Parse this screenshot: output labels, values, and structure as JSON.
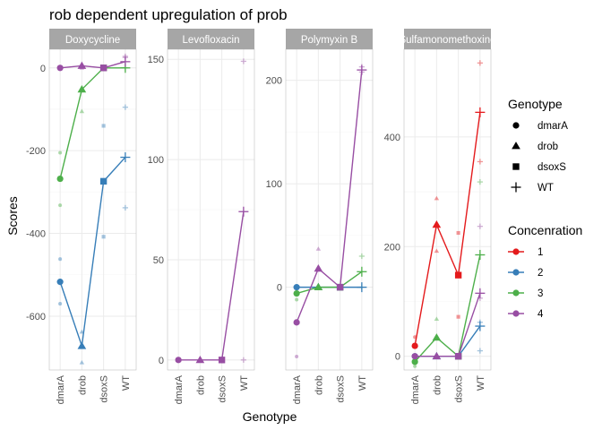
{
  "chart_data": {
    "type": "line",
    "title": "rob dependent upregulation of prob",
    "xlabel": "Genotype",
    "ylabel": "Scores",
    "categories": [
      "dmarA",
      "drob",
      "dsoxS",
      "WT"
    ],
    "facets": [
      {
        "name": "Doxycycline",
        "ylim": [
          -730,
          45
        ],
        "yticks": [
          0,
          -200,
          -400,
          -600
        ],
        "series": [
          {
            "concentration": "2",
            "values": [
              -517,
              -672,
              -274,
              -216
            ]
          },
          {
            "concentration": "3",
            "values": [
              -268,
              -52,
              0,
              0
            ]
          },
          {
            "concentration": "4",
            "values": [
              0,
              5,
              0,
              15
            ]
          }
        ],
        "replicates": [
          {
            "concentration": "2",
            "values": [
              [
                -462,
                -570
              ],
              [
                -638,
                -712
              ],
              [
                -140,
                -408
              ],
              [
                -95,
                -338
              ]
            ]
          },
          {
            "concentration": "3",
            "values": [
              [
                -205,
                -332
              ],
              [
                -105
              ],
              [
                0
              ],
              [
                0
              ]
            ]
          },
          {
            "concentration": "4",
            "values": [
              [
                0
              ],
              [
                0,
                8
              ],
              [
                0
              ],
              [
                25,
                28
              ]
            ]
          }
        ]
      },
      {
        "name": "Levofloxacin",
        "ylim": [
          -5,
          155
        ],
        "yticks": [
          0,
          50,
          100,
          150
        ],
        "series": [
          {
            "concentration": "4",
            "values": [
              0,
              0,
              0,
              74
            ]
          }
        ],
        "replicates": [
          {
            "concentration": "4",
            "values": [
              [
                0
              ],
              [
                0
              ],
              [
                0
              ],
              [
                149,
                0
              ]
            ]
          }
        ]
      },
      {
        "name": "Polymyxin B",
        "ylim": [
          -80,
          230
        ],
        "yticks": [
          0,
          100,
          200
        ],
        "series": [
          {
            "concentration": "2",
            "values": [
              0,
              0,
              0,
              0
            ]
          },
          {
            "concentration": "3",
            "values": [
              -6,
              0,
              0,
              15
            ]
          },
          {
            "concentration": "4",
            "values": [
              -34,
              18,
              0,
              210
            ]
          }
        ],
        "replicates": [
          {
            "concentration": "3",
            "values": [
              [
                -12
              ],
              [
                0
              ],
              [
                0
              ],
              [
                30,
                0
              ]
            ]
          },
          {
            "concentration": "4",
            "values": [
              [
                -67
              ],
              [
                37
              ],
              [
                0
              ],
              [
                213,
                208
              ]
            ]
          }
        ]
      },
      {
        "name": "Sulfamonomethoxine",
        "ylim": [
          -25,
          560
        ],
        "yticks": [
          0,
          200,
          400
        ],
        "series": [
          {
            "concentration": "1",
            "values": [
              19,
              240,
              148,
              445
            ]
          },
          {
            "concentration": "2",
            "values": [
              0,
              0,
              0,
              55
            ]
          },
          {
            "concentration": "3",
            "values": [
              -10,
              34,
              0,
              185
            ]
          },
          {
            "concentration": "4",
            "values": [
              0,
              0,
              0,
              115
            ]
          }
        ],
        "replicates": [
          {
            "concentration": "1",
            "values": [
              [
                35
              ],
              [
                288,
                192
              ],
              [
                225,
                72
              ],
              [
                535,
                355
              ]
            ]
          },
          {
            "concentration": "2",
            "values": [
              [
                0
              ],
              [
                0
              ],
              [
                0
              ],
              [
                62,
                10
              ]
            ]
          },
          {
            "concentration": "3",
            "values": [
              [
                -18
              ],
              [
                68,
                35
              ],
              [
                0
              ],
              [
                318
              ]
            ]
          },
          {
            "concentration": "4",
            "values": [
              [
                0
              ],
              [
                0
              ],
              [
                0
              ],
              [
                237,
                106
              ]
            ]
          }
        ]
      }
    ],
    "legend": {
      "placement": "right",
      "shape_title": "Genotype",
      "shapes": [
        {
          "label": "dmarA",
          "shape": "circle"
        },
        {
          "label": "drob",
          "shape": "triangle"
        },
        {
          "label": "dsoxS",
          "shape": "square"
        },
        {
          "label": "WT",
          "shape": "plus"
        }
      ],
      "color_title": "Concenration",
      "colors": [
        {
          "label": "1",
          "color": "#E41A1C"
        },
        {
          "label": "2",
          "color": "#377EB8"
        },
        {
          "label": "3",
          "color": "#4DAF4A"
        },
        {
          "label": "4",
          "color": "#984EA3"
        }
      ]
    },
    "style": {
      "panel_background": "#FFFFFF",
      "strip_background": "#A6A6A6",
      "strip_text_color": "#FFFFFF",
      "grid_color": "#EBEBEB",
      "grid_minor_color": "#F5F5F5",
      "axis_text_color": "#4D4D4D",
      "grid": true
    }
  }
}
